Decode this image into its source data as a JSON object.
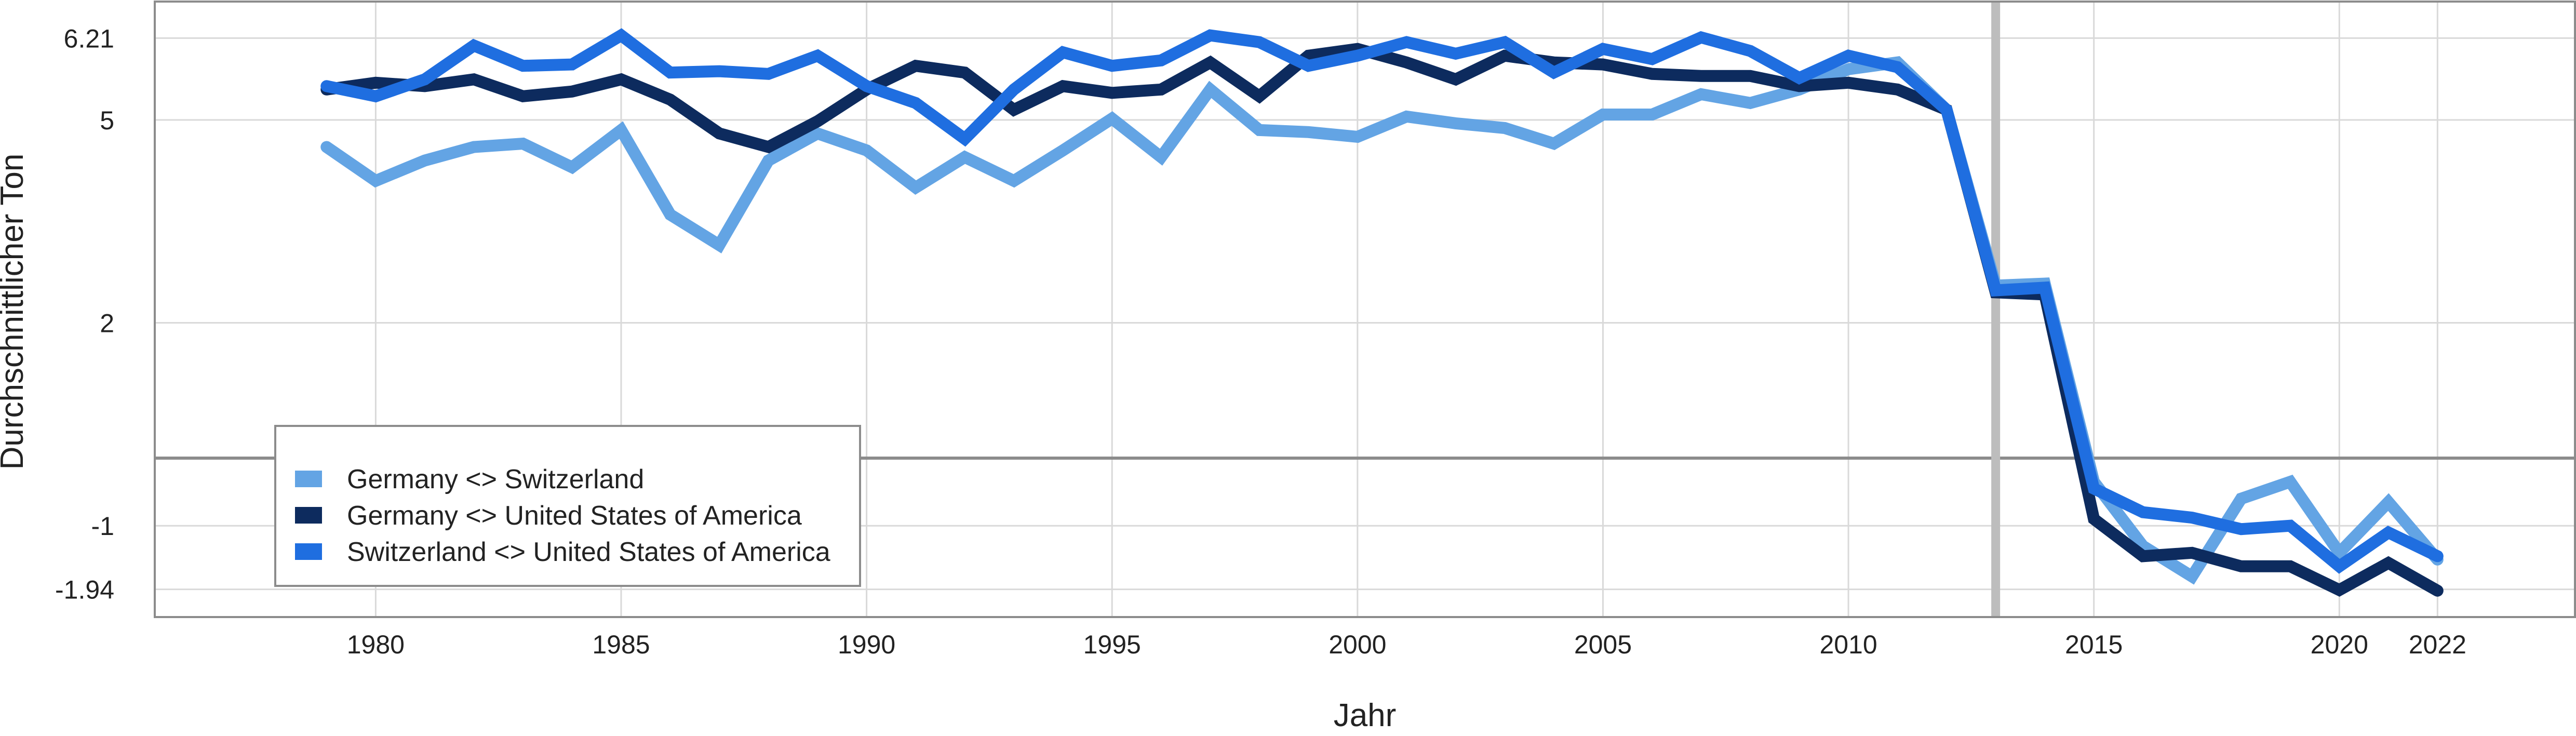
{
  "chart_data": {
    "type": "line",
    "title": "",
    "xlabel": "Jahr",
    "ylabel": "Durchschnittlicher Ton",
    "xlim": [
      1975.5,
      2024.8
    ],
    "ylim": [
      -2.35,
      6.75
    ],
    "x_ticks": [
      1980,
      1985,
      1990,
      1995,
      2000,
      2005,
      2010,
      2015,
      2020,
      2022
    ],
    "y_ticks": [
      6.21,
      5,
      2,
      -1,
      -1.94
    ],
    "y_tick_labels": [
      "6.21",
      "5",
      "2",
      "-1",
      "-1.94"
    ],
    "grid": true,
    "reference_lines": {
      "horizontal": 0,
      "vertical": 2013
    },
    "legend_position": "bottom-left",
    "x": [
      1979,
      1980,
      1981,
      1982,
      1983,
      1984,
      1985,
      1986,
      1987,
      1988,
      1989,
      1990,
      1991,
      1992,
      1993,
      1994,
      1995,
      1996,
      1997,
      1998,
      1999,
      2000,
      2001,
      2002,
      2003,
      2004,
      2005,
      2006,
      2007,
      2008,
      2009,
      2010,
      2011,
      2012,
      2013,
      2014,
      2015,
      2016,
      2017,
      2018,
      2019,
      2020,
      2021,
      2022
    ],
    "series": [
      {
        "name": "Germany <> Switzerland",
        "color": "#63a4e4",
        "values": [
          4.6,
          4.1,
          4.4,
          4.6,
          4.65,
          4.3,
          4.85,
          3.6,
          3.15,
          4.4,
          4.8,
          4.55,
          4.0,
          4.45,
          4.1,
          4.55,
          5.02,
          4.45,
          5.45,
          4.85,
          4.82,
          4.75,
          5.05,
          4.95,
          4.88,
          4.65,
          5.08,
          5.08,
          5.38,
          5.25,
          5.45,
          5.75,
          5.85,
          5.15,
          2.55,
          2.58,
          -0.35,
          -1.3,
          -1.75,
          -0.6,
          -0.35,
          -1.4,
          -0.65,
          -1.5
        ]
      },
      {
        "name": "Germany <> United States of America",
        "color": "#0d2b5e",
        "values": [
          5.45,
          5.55,
          5.5,
          5.6,
          5.35,
          5.42,
          5.6,
          5.3,
          4.8,
          4.6,
          4.98,
          5.45,
          5.8,
          5.7,
          5.15,
          5.5,
          5.4,
          5.45,
          5.85,
          5.35,
          5.95,
          6.05,
          5.85,
          5.6,
          5.95,
          5.85,
          5.82,
          5.68,
          5.65,
          5.65,
          5.5,
          5.55,
          5.45,
          5.15,
          2.45,
          2.42,
          -0.9,
          -1.45,
          -1.4,
          -1.6,
          -1.6,
          -1.95,
          -1.55,
          -1.96
        ]
      },
      {
        "name": "Switzerland <> United States of America",
        "color": "#1f6ee0",
        "values": [
          5.5,
          5.35,
          5.6,
          6.1,
          5.8,
          5.82,
          6.25,
          5.7,
          5.72,
          5.68,
          5.95,
          5.5,
          5.25,
          4.72,
          5.45,
          6.0,
          5.8,
          5.88,
          6.25,
          6.15,
          5.8,
          5.95,
          6.15,
          5.98,
          6.15,
          5.7,
          6.05,
          5.9,
          6.22,
          6.02,
          5.62,
          5.95,
          5.78,
          5.15,
          2.48,
          2.52,
          -0.45,
          -0.8,
          -0.88,
          -1.05,
          -1.0,
          -1.6,
          -1.1,
          -1.45
        ]
      }
    ]
  }
}
